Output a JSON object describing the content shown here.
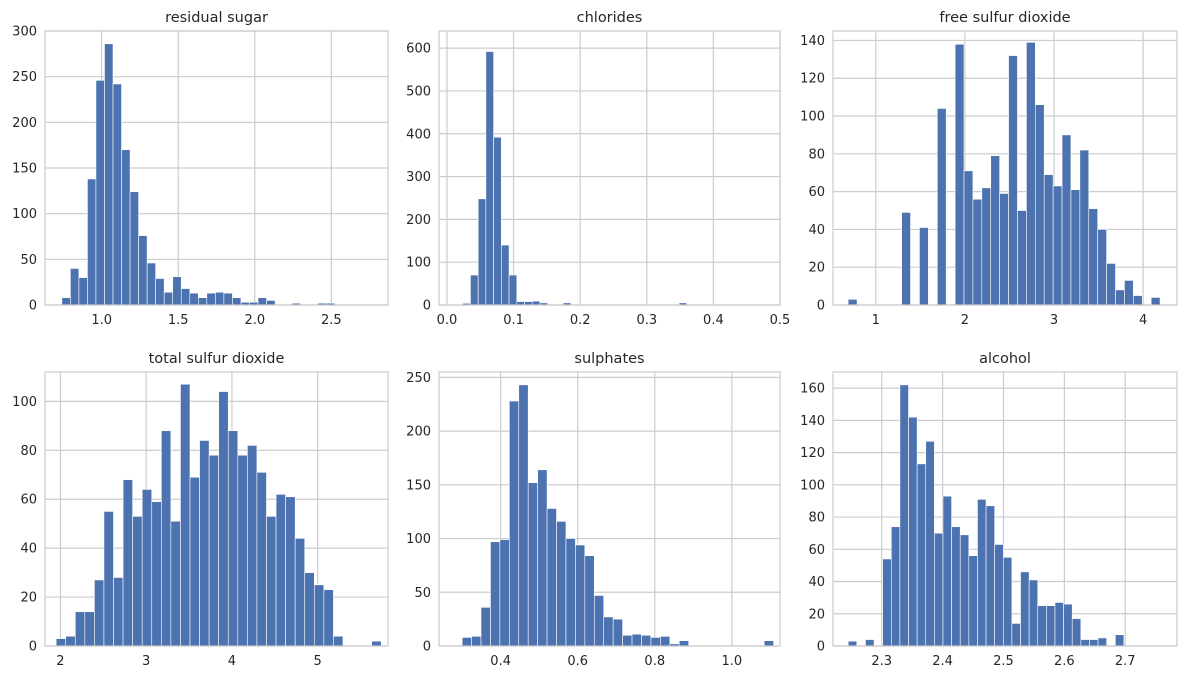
{
  "chart_data": [
    {
      "type": "bar",
      "title": "residual sugar",
      "xlim": [
        0.63,
        2.87
      ],
      "ylim": [
        0,
        300
      ],
      "xticks": [
        1.0,
        1.5,
        2.0,
        2.5
      ],
      "xtick_labels": [
        "1.0",
        "1.5",
        "2.0",
        "2.5"
      ],
      "yticks": [
        0,
        50,
        100,
        150,
        200,
        250,
        300
      ],
      "ytick_labels": [
        "0",
        "50",
        "100",
        "150",
        "200",
        "250",
        "300"
      ],
      "bin_start": 0.74,
      "bin_width": 0.0557,
      "values": [
        8,
        40,
        30,
        138,
        246,
        286,
        242,
        170,
        124,
        76,
        46,
        29,
        14,
        31,
        18,
        13,
        8,
        13,
        14,
        13,
        8,
        3,
        3,
        8,
        5,
        0,
        0,
        2,
        0,
        0,
        2,
        2
      ],
      "grid": true
    },
    {
      "type": "bar",
      "title": "chlorides",
      "xlim": [
        -0.012,
        0.5
      ],
      "ylim": [
        0,
        640
      ],
      "xticks": [
        0.0,
        0.1,
        0.2,
        0.3,
        0.4,
        0.5
      ],
      "xtick_labels": [
        "0.0",
        "0.1",
        "0.2",
        "0.3",
        "0.4",
        "0.5"
      ],
      "yticks": [
        0,
        100,
        200,
        300,
        400,
        500,
        600
      ],
      "ytick_labels": [
        "0",
        "100",
        "200",
        "300",
        "400",
        "500",
        "600"
      ],
      "bin_start": 0.012,
      "bin_width": 0.0116,
      "values": [
        0,
        4,
        70,
        248,
        592,
        392,
        140,
        70,
        8,
        8,
        9,
        5,
        2,
        0,
        5,
        0,
        0,
        0,
        0,
        0,
        0,
        0,
        0,
        0,
        0,
        0,
        0,
        0,
        0,
        5,
        0,
        0,
        0,
        0,
        0,
        0,
        0,
        0,
        0,
        0
      ],
      "grid": true
    },
    {
      "type": "bar",
      "title": "free sulfur dioxide",
      "xlim": [
        0.52,
        4.38
      ],
      "ylim": [
        0,
        145
      ],
      "xticks": [
        1,
        2,
        3,
        4
      ],
      "xtick_labels": [
        "1",
        "2",
        "3",
        "4"
      ],
      "yticks": [
        0,
        20,
        40,
        60,
        80,
        100,
        120,
        140
      ],
      "ytick_labels": [
        "0",
        "20",
        "40",
        "60",
        "80",
        "100",
        "120",
        "140"
      ],
      "bin_start": 0.69,
      "bin_width": 0.1,
      "values": [
        3,
        0,
        0,
        0,
        0,
        0,
        49,
        0,
        41,
        0,
        104,
        0,
        138,
        71,
        56,
        62,
        79,
        59,
        132,
        50,
        139,
        106,
        69,
        63,
        90,
        61,
        82,
        51,
        40,
        22,
        8,
        13,
        5,
        0,
        4
      ],
      "grid": true
    },
    {
      "type": "bar",
      "title": "total sulfur dioxide",
      "xlim": [
        1.82,
        5.82
      ],
      "ylim": [
        0,
        112
      ],
      "xticks": [
        2,
        3,
        4,
        5
      ],
      "xtick_labels": [
        "2",
        "3",
        "4",
        "5"
      ],
      "yticks": [
        0,
        20,
        40,
        60,
        80,
        100
      ],
      "ytick_labels": [
        "0",
        "20",
        "40",
        "60",
        "80",
        "100"
      ],
      "bin_start": 1.95,
      "bin_width": 0.1115,
      "values": [
        3,
        4,
        14,
        14,
        27,
        55,
        28,
        68,
        53,
        64,
        59,
        88,
        51,
        107,
        69,
        84,
        78,
        104,
        88,
        78,
        82,
        71,
        53,
        62,
        61,
        44,
        30,
        25,
        23,
        4,
        0,
        0,
        0,
        2
      ],
      "grid": true
    },
    {
      "type": "bar",
      "title": "sulphates",
      "xlim": [
        0.24,
        1.125
      ],
      "ylim": [
        0,
        255
      ],
      "xticks": [
        0.4,
        0.6,
        0.8,
        1.0
      ],
      "xtick_labels": [
        "0.4",
        "0.6",
        "0.8",
        "1.0"
      ],
      "yticks": [
        0,
        50,
        100,
        150,
        200,
        250
      ],
      "ytick_labels": [
        "0",
        "50",
        "100",
        "150",
        "200",
        "250"
      ],
      "bin_start": 0.3,
      "bin_width": 0.0245,
      "values": [
        8,
        9,
        36,
        97,
        99,
        228,
        243,
        152,
        164,
        128,
        116,
        100,
        94,
        84,
        47,
        27,
        25,
        10,
        11,
        10,
        8,
        9,
        2,
        5,
        0,
        0,
        0,
        0,
        0,
        0,
        0,
        0,
        5
      ],
      "grid": true
    },
    {
      "type": "bar",
      "title": "alcohol",
      "xlim": [
        2.22,
        2.785
      ],
      "ylim": [
        0,
        170
      ],
      "xticks": [
        2.3,
        2.4,
        2.5,
        2.6,
        2.7
      ],
      "xtick_labels": [
        "2.3",
        "2.4",
        "2.5",
        "2.6",
        "2.7"
      ],
      "yticks": [
        0,
        20,
        40,
        60,
        80,
        100,
        120,
        140,
        160
      ],
      "ytick_labels": [
        "0",
        "20",
        "40",
        "60",
        "80",
        "100",
        "120",
        "140",
        "160"
      ],
      "bin_start": 2.245,
      "bin_width": 0.01415,
      "values": [
        3,
        0,
        4,
        0,
        54,
        74,
        162,
        142,
        113,
        127,
        70,
        93,
        74,
        69,
        56,
        91,
        87,
        63,
        55,
        14,
        46,
        41,
        25,
        25,
        27,
        26,
        17,
        4,
        4,
        5,
        0,
        7
      ],
      "grid": true
    }
  ]
}
